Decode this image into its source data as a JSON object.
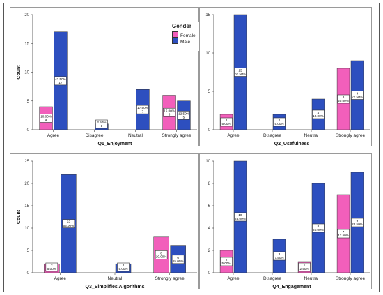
{
  "legend": {
    "title": "Gender",
    "items": [
      {
        "label": "Female",
        "color": "#f25fbb"
      },
      {
        "label": "Male",
        "color": "#2d4fbf"
      }
    ]
  },
  "chart_data": [
    {
      "type": "bar",
      "xlabel": "Q1_Enjoyment",
      "ylabel": "Count",
      "ylim": [
        0,
        20
      ],
      "yticks": [
        0,
        5,
        10,
        15,
        20
      ],
      "categories": [
        "Agree",
        "Disagree",
        "Neutral",
        "Strongly agree"
      ],
      "series": [
        {
          "name": "Female",
          "values": [
            4,
            0,
            0,
            6
          ],
          "labels": [
            [
              "10.00%",
              "4"
            ],
            null,
            null,
            [
              "15.00%",
              "6"
            ]
          ]
        },
        {
          "name": "Male",
          "values": [
            17,
            1,
            7,
            5
          ],
          "labels": [
            [
              "42.50%",
              "17"
            ],
            [
              "2.50%",
              "1"
            ],
            [
              "17.50%",
              "7"
            ],
            [
              "12.50%",
              "5"
            ]
          ]
        }
      ]
    },
    {
      "type": "bar",
      "xlabel": "Q2_Usefulness",
      "ylabel": "",
      "ylim": [
        0,
        15
      ],
      "yticks": [
        0,
        5,
        10,
        15
      ],
      "categories": [
        "Agree",
        "Disagree",
        "Neutral",
        "Strongly agree"
      ],
      "series": [
        {
          "name": "Female",
          "values": [
            2,
            0,
            0,
            8
          ],
          "labels": [
            [
              "2",
              "5.00%"
            ],
            null,
            null,
            [
              "8",
              "20.00%"
            ]
          ]
        },
        {
          "name": "Male",
          "values": [
            15,
            2,
            4,
            9
          ],
          "labels": [
            [
              "15",
              "37.50%"
            ],
            [
              "2",
              "5.00%"
            ],
            [
              "4",
              "10.00%"
            ],
            [
              "9",
              "22.50%"
            ]
          ]
        }
      ]
    },
    {
      "type": "bar",
      "xlabel": "Q3_Simplifies Algorithms",
      "ylabel": "Count",
      "ylim": [
        0,
        25
      ],
      "yticks": [
        0,
        5,
        10,
        15,
        20,
        25
      ],
      "categories": [
        "Agree",
        "Neutral",
        "Strongly agree"
      ],
      "series": [
        {
          "name": "Female",
          "values": [
            2,
            0,
            8
          ],
          "labels": [
            [
              "2",
              "5.00%"
            ],
            null,
            [
              "8",
              "20.00%"
            ]
          ]
        },
        {
          "name": "Male",
          "values": [
            22,
            2,
            6
          ],
          "labels": [
            [
              "22",
              "55.00%"
            ],
            [
              "2",
              "5.00%"
            ],
            [
              "6",
              "15.00%"
            ]
          ]
        }
      ]
    },
    {
      "type": "bar",
      "xlabel": "Q4_Engagement",
      "ylabel": "",
      "ylim": [
        0,
        10
      ],
      "yticks": [
        0,
        2,
        4,
        6,
        8,
        10
      ],
      "categories": [
        "Agree",
        "Disagree",
        "Neutral",
        "Strongly agree"
      ],
      "series": [
        {
          "name": "Female",
          "values": [
            2,
            0,
            1,
            7
          ],
          "labels": [
            [
              "2",
              "5.00%"
            ],
            null,
            [
              "1",
              "2.50%"
            ],
            [
              "7",
              "17.50%"
            ]
          ]
        },
        {
          "name": "Male",
          "values": [
            10,
            3,
            8,
            9
          ],
          "labels": [
            [
              "10",
              "25.00%"
            ],
            [
              "3",
              "7.50%"
            ],
            [
              "8",
              "20.00%"
            ],
            [
              "9",
              "22.50%"
            ]
          ]
        }
      ]
    }
  ]
}
